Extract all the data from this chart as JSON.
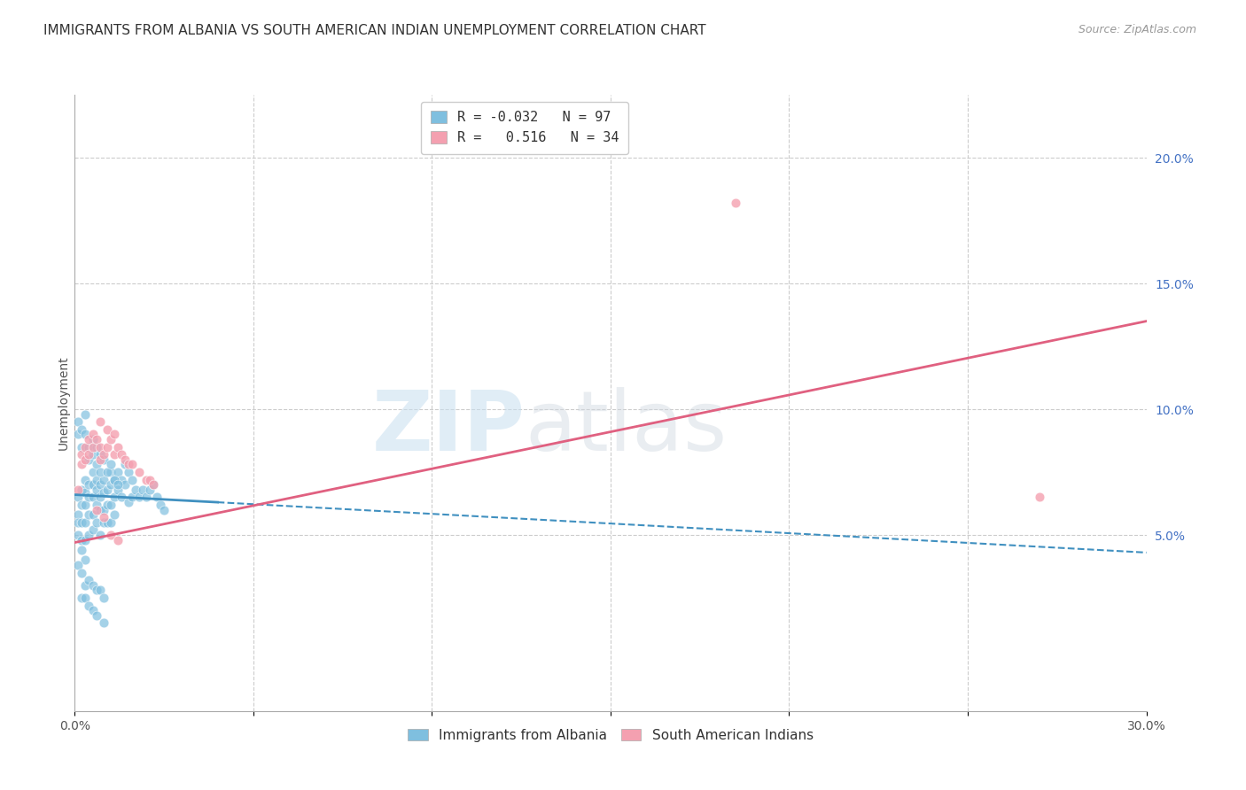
{
  "title": "IMMIGRANTS FROM ALBANIA VS SOUTH AMERICAN INDIAN UNEMPLOYMENT CORRELATION CHART",
  "source": "Source: ZipAtlas.com",
  "ylabel": "Unemployment",
  "xlim": [
    0.0,
    0.3
  ],
  "ylim": [
    -0.02,
    0.225
  ],
  "xticks": [
    0.0,
    0.05,
    0.1,
    0.15,
    0.2,
    0.25,
    0.3
  ],
  "yticks_right": [
    0.05,
    0.1,
    0.15,
    0.2
  ],
  "ytick_labels_right": [
    "5.0%",
    "10.0%",
    "15.0%",
    "20.0%"
  ],
  "xtick_labels": [
    "0.0%",
    "",
    "",
    "",
    "",
    "",
    "30.0%"
  ],
  "watermark_zip": "ZIP",
  "watermark_atlas": "atlas",
  "legend_R_blue": "-0.032",
  "legend_N_blue": "97",
  "legend_R_pink": "0.516",
  "legend_N_pink": "34",
  "blue_color": "#7fbfdf",
  "pink_color": "#f4a0b0",
  "blue_line_color": "#4090c0",
  "pink_line_color": "#e06080",
  "blue_scatter_x": [
    0.001,
    0.001,
    0.001,
    0.001,
    0.002,
    0.002,
    0.002,
    0.002,
    0.002,
    0.003,
    0.003,
    0.003,
    0.003,
    0.003,
    0.003,
    0.004,
    0.004,
    0.004,
    0.004,
    0.005,
    0.005,
    0.005,
    0.005,
    0.005,
    0.006,
    0.006,
    0.006,
    0.006,
    0.007,
    0.007,
    0.007,
    0.007,
    0.008,
    0.008,
    0.008,
    0.008,
    0.009,
    0.009,
    0.009,
    0.01,
    0.01,
    0.01,
    0.01,
    0.011,
    0.011,
    0.011,
    0.012,
    0.012,
    0.013,
    0.013,
    0.014,
    0.014,
    0.015,
    0.015,
    0.016,
    0.016,
    0.017,
    0.018,
    0.019,
    0.02,
    0.021,
    0.022,
    0.023,
    0.024,
    0.025,
    0.001,
    0.001,
    0.002,
    0.002,
    0.003,
    0.003,
    0.004,
    0.004,
    0.005,
    0.005,
    0.006,
    0.006,
    0.007,
    0.007,
    0.008,
    0.009,
    0.01,
    0.011,
    0.012,
    0.001,
    0.002,
    0.003,
    0.004,
    0.005,
    0.006,
    0.007,
    0.008,
    0.002,
    0.003,
    0.004,
    0.005,
    0.006,
    0.008
  ],
  "blue_scatter_y": [
    0.065,
    0.058,
    0.055,
    0.05,
    0.068,
    0.062,
    0.055,
    0.048,
    0.044,
    0.072,
    0.067,
    0.062,
    0.055,
    0.048,
    0.04,
    0.07,
    0.065,
    0.058,
    0.05,
    0.075,
    0.07,
    0.065,
    0.058,
    0.052,
    0.072,
    0.068,
    0.062,
    0.055,
    0.07,
    0.065,
    0.06,
    0.05,
    0.072,
    0.067,
    0.06,
    0.055,
    0.068,
    0.062,
    0.055,
    0.075,
    0.07,
    0.062,
    0.055,
    0.072,
    0.065,
    0.058,
    0.075,
    0.068,
    0.072,
    0.065,
    0.078,
    0.07,
    0.075,
    0.063,
    0.072,
    0.065,
    0.068,
    0.065,
    0.068,
    0.065,
    0.068,
    0.07,
    0.065,
    0.062,
    0.06,
    0.095,
    0.09,
    0.092,
    0.085,
    0.098,
    0.09,
    0.085,
    0.08,
    0.088,
    0.082,
    0.085,
    0.078,
    0.082,
    0.075,
    0.08,
    0.075,
    0.078,
    0.072,
    0.07,
    0.038,
    0.035,
    0.03,
    0.032,
    0.03,
    0.028,
    0.028,
    0.025,
    0.025,
    0.025,
    0.022,
    0.02,
    0.018,
    0.015
  ],
  "pink_scatter_x": [
    0.001,
    0.002,
    0.002,
    0.003,
    0.003,
    0.004,
    0.004,
    0.005,
    0.005,
    0.006,
    0.007,
    0.007,
    0.008,
    0.009,
    0.01,
    0.011,
    0.012,
    0.013,
    0.014,
    0.015,
    0.016,
    0.018,
    0.02,
    0.021,
    0.022,
    0.006,
    0.008,
    0.01,
    0.012,
    0.007,
    0.009,
    0.011,
    0.27,
    0.185
  ],
  "pink_scatter_y": [
    0.068,
    0.082,
    0.078,
    0.085,
    0.08,
    0.088,
    0.082,
    0.09,
    0.085,
    0.088,
    0.085,
    0.08,
    0.082,
    0.085,
    0.088,
    0.082,
    0.085,
    0.082,
    0.08,
    0.078,
    0.078,
    0.075,
    0.072,
    0.072,
    0.07,
    0.06,
    0.057,
    0.05,
    0.048,
    0.095,
    0.092,
    0.09,
    0.065,
    0.182
  ],
  "blue_trendline_solid": {
    "x_start": 0.0,
    "x_end": 0.04,
    "y_start": 0.066,
    "y_end": 0.063
  },
  "blue_trendline_dashed": {
    "x_start": 0.04,
    "x_end": 0.3,
    "y_start": 0.063,
    "y_end": 0.043
  },
  "pink_trendline": {
    "x_start": 0.0,
    "x_end": 0.3,
    "y_start": 0.047,
    "y_end": 0.135
  },
  "background_color": "#ffffff",
  "grid_color": "#cccccc",
  "title_fontsize": 11,
  "axis_fontsize": 10,
  "source_fontsize": 9
}
